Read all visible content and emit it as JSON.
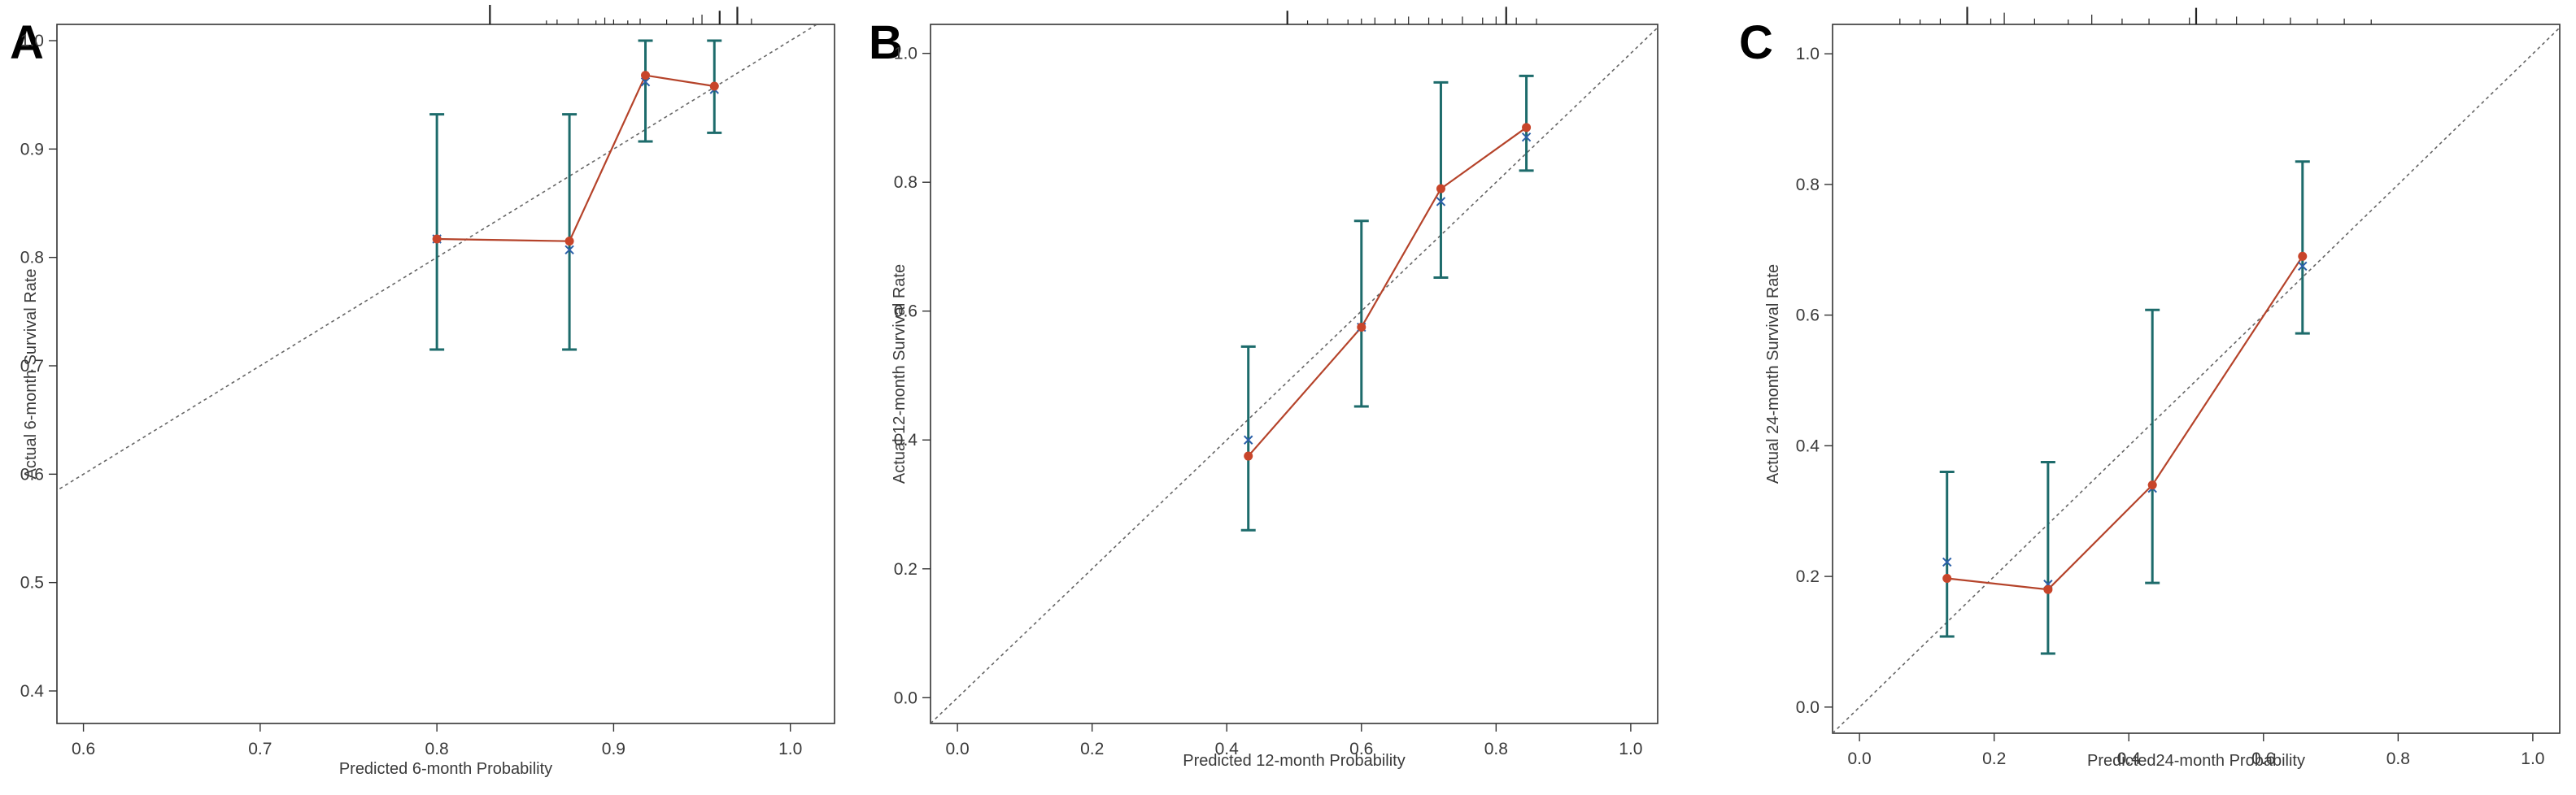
{
  "colors": {
    "error_bar": "#1d6b6b",
    "line": "#b5432a",
    "point": "#c8452a",
    "cross": "#2a5fa8",
    "diagonal": "#666666",
    "frame": "#333333"
  },
  "chart_data": [
    {
      "type": "line",
      "panel": "A",
      "xlabel": "Predicted 6-month Probability",
      "ylabel": "Actual 6-month Survival Rate",
      "xlim": [
        0.585,
        1.025
      ],
      "ylim": [
        0.37,
        1.015
      ],
      "xticks": [
        "0.6",
        "0.7",
        "0.8",
        "0.9",
        "1.0"
      ],
      "yticks": [
        "0.4",
        "0.5",
        "0.6",
        "0.7",
        "0.8",
        "0.9",
        "1.0"
      ],
      "reference_line": "ideal diagonal (dashed)",
      "observed": [
        {
          "x": 0.8,
          "y": 0.817,
          "lower": 0.715,
          "upper": 0.932,
          "cross": 0.817
        },
        {
          "x": 0.875,
          "y": 0.815,
          "lower": 0.715,
          "upper": 0.932,
          "cross": 0.807
        },
        {
          "x": 0.918,
          "y": 0.968,
          "lower": 0.907,
          "upper": 1.0,
          "cross": 0.962
        },
        {
          "x": 0.957,
          "y": 0.958,
          "lower": 0.915,
          "upper": 1.0,
          "cross": 0.955
        }
      ],
      "rug": [
        {
          "x": 0.83,
          "len": 1.0
        },
        {
          "x": 0.862,
          "len": 0.2
        },
        {
          "x": 0.868,
          "len": 0.25
        },
        {
          "x": 0.88,
          "len": 0.3
        },
        {
          "x": 0.89,
          "len": 0.2
        },
        {
          "x": 0.895,
          "len": 0.35
        },
        {
          "x": 0.9,
          "len": 0.25
        },
        {
          "x": 0.908,
          "len": 0.2
        },
        {
          "x": 0.915,
          "len": 0.3
        },
        {
          "x": 0.93,
          "len": 0.25
        },
        {
          "x": 0.945,
          "len": 0.35
        },
        {
          "x": 0.95,
          "len": 0.5
        },
        {
          "x": 0.96,
          "len": 0.7
        },
        {
          "x": 0.97,
          "len": 0.9
        },
        {
          "x": 0.978,
          "len": 0.3
        }
      ]
    },
    {
      "type": "line",
      "panel": "B",
      "xlabel": "Predicted 12-month Probability",
      "ylabel": "Actual 12-month Survival Rate",
      "xlim": [
        -0.04,
        1.04
      ],
      "ylim": [
        -0.04,
        1.045
      ],
      "xticks": [
        "0.0",
        "0.2",
        "0.4",
        "0.6",
        "0.8",
        "1.0"
      ],
      "yticks": [
        "0.0",
        "0.2",
        "0.4",
        "0.6",
        "0.8",
        "1.0"
      ],
      "reference_line": "ideal diagonal (dashed)",
      "observed": [
        {
          "x": 0.432,
          "y": 0.375,
          "lower": 0.26,
          "upper": 0.545,
          "cross": 0.4
        },
        {
          "x": 0.6,
          "y": 0.575,
          "lower": 0.452,
          "upper": 0.74,
          "cross": 0.575
        },
        {
          "x": 0.718,
          "y": 0.79,
          "lower": 0.652,
          "upper": 0.955,
          "cross": 0.77
        },
        {
          "x": 0.845,
          "y": 0.885,
          "lower": 0.818,
          "upper": 0.965,
          "cross": 0.87
        }
      ],
      "rug": [
        {
          "x": 0.49,
          "len": 0.7
        },
        {
          "x": 0.52,
          "len": 0.2
        },
        {
          "x": 0.55,
          "len": 0.3
        },
        {
          "x": 0.58,
          "len": 0.25
        },
        {
          "x": 0.6,
          "len": 0.3
        },
        {
          "x": 0.62,
          "len": 0.35
        },
        {
          "x": 0.65,
          "len": 0.3
        },
        {
          "x": 0.67,
          "len": 0.4
        },
        {
          "x": 0.7,
          "len": 0.35
        },
        {
          "x": 0.72,
          "len": 0.3
        },
        {
          "x": 0.75,
          "len": 0.4
        },
        {
          "x": 0.78,
          "len": 0.35
        },
        {
          "x": 0.8,
          "len": 0.4
        },
        {
          "x": 0.815,
          "len": 0.9
        },
        {
          "x": 0.83,
          "len": 0.35
        },
        {
          "x": 0.86,
          "len": 0.3
        }
      ]
    },
    {
      "type": "line",
      "panel": "C",
      "xlabel": "Predicted24-month Probability",
      "ylabel": "Actual 24-month Survival Rate",
      "xlim": [
        -0.04,
        1.04
      ],
      "ylim": [
        -0.04,
        1.045
      ],
      "xticks": [
        "0.0",
        "0.2",
        "0.4",
        "0.6",
        "0.8",
        "1.0"
      ],
      "yticks": [
        "0.0",
        "0.2",
        "0.4",
        "0.6",
        "0.8",
        "1.0"
      ],
      "reference_line": "ideal diagonal (dashed)",
      "observed": [
        {
          "x": 0.13,
          "y": 0.197,
          "lower": 0.108,
          "upper": 0.36,
          "cross": 0.222
        },
        {
          "x": 0.28,
          "y": 0.18,
          "lower": 0.082,
          "upper": 0.375,
          "cross": 0.188
        },
        {
          "x": 0.435,
          "y": 0.34,
          "lower": 0.19,
          "upper": 0.608,
          "cross": 0.335
        },
        {
          "x": 0.658,
          "y": 0.69,
          "lower": 0.572,
          "upper": 0.835,
          "cross": 0.675
        }
      ],
      "rug": [
        {
          "x": 0.06,
          "len": 0.3
        },
        {
          "x": 0.09,
          "len": 0.25
        },
        {
          "x": 0.12,
          "len": 0.3
        },
        {
          "x": 0.16,
          "len": 0.9
        },
        {
          "x": 0.195,
          "len": 0.3
        },
        {
          "x": 0.215,
          "len": 0.6
        },
        {
          "x": 0.26,
          "len": 0.3
        },
        {
          "x": 0.31,
          "len": 0.25
        },
        {
          "x": 0.345,
          "len": 0.5
        },
        {
          "x": 0.39,
          "len": 0.3
        },
        {
          "x": 0.43,
          "len": 0.3
        },
        {
          "x": 0.49,
          "len": 0.35
        },
        {
          "x": 0.5,
          "len": 0.85
        },
        {
          "x": 0.53,
          "len": 0.3
        },
        {
          "x": 0.56,
          "len": 0.4
        },
        {
          "x": 0.6,
          "len": 0.3
        },
        {
          "x": 0.64,
          "len": 0.35
        },
        {
          "x": 0.68,
          "len": 0.3
        },
        {
          "x": 0.72,
          "len": 0.3
        },
        {
          "x": 0.76,
          "len": 0.25
        }
      ]
    }
  ]
}
